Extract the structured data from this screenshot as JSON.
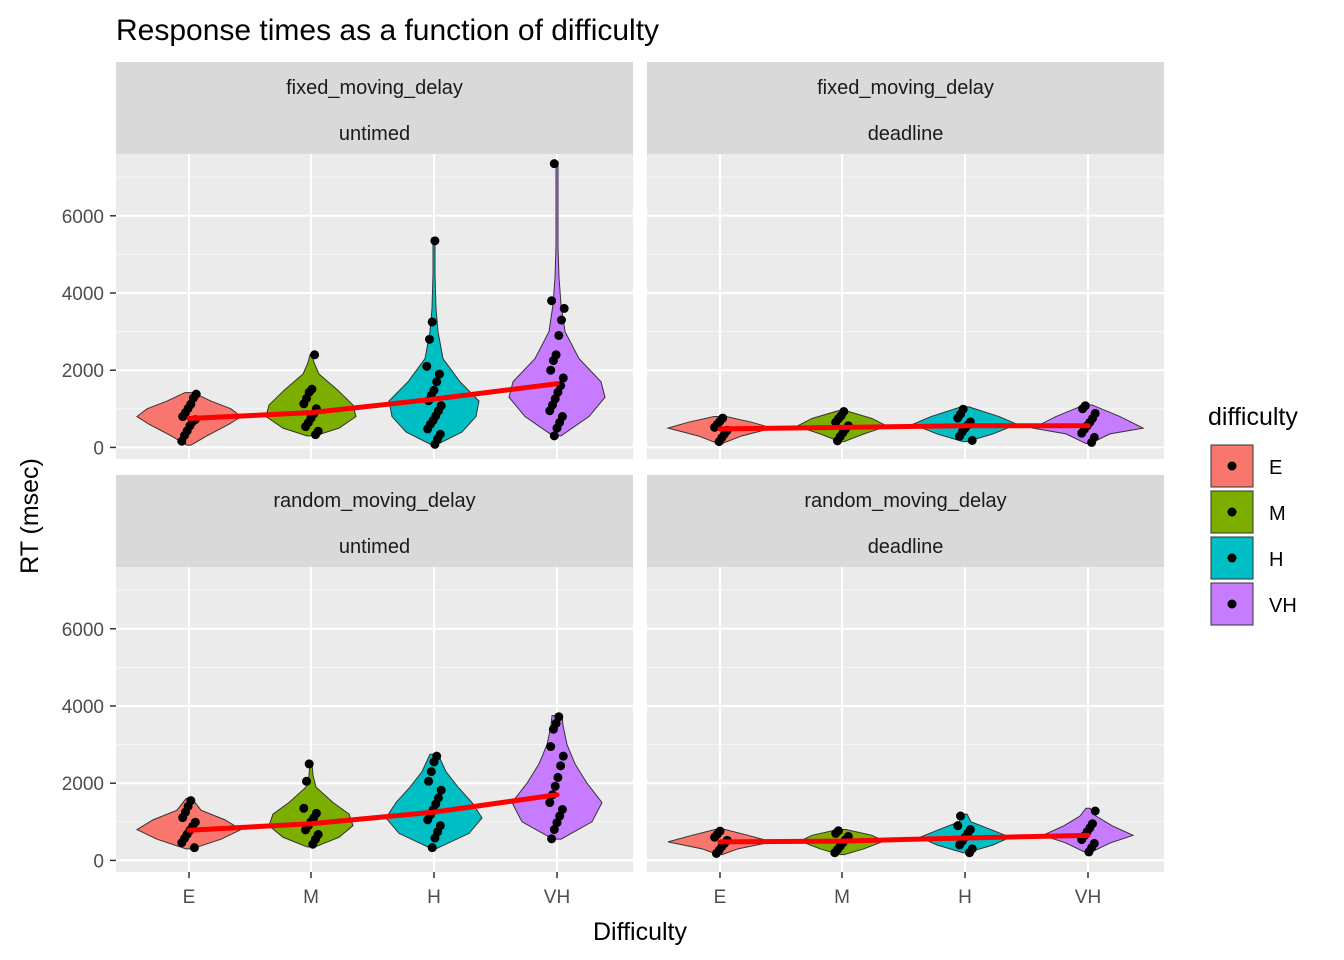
{
  "chart_data": {
    "type": "violin",
    "title": "Response times as a function of difficulty",
    "xlabel": "Difficulty",
    "ylabel": "RT (msec)",
    "categories": [
      "E",
      "M",
      "H",
      "VH"
    ],
    "y_ticks": [
      0,
      2000,
      4000,
      6000
    ],
    "ylim": [
      -300,
      7600
    ],
    "grid": true,
    "legend": {
      "title": "difficulty",
      "position": "right",
      "items": [
        {
          "label": "E",
          "color": "#F8766D"
        },
        {
          "label": "M",
          "color": "#7CAE00"
        },
        {
          "label": "H",
          "color": "#00BFC4"
        },
        {
          "label": "VH",
          "color": "#C77CFF"
        }
      ]
    },
    "trend_color": "#FF0000",
    "panels": [
      {
        "strip_top": "fixed_moving_delay",
        "strip_bottom": "untimed",
        "trend_means": [
          750,
          900,
          1250,
          1650
        ],
        "violins": [
          {
            "min": 60,
            "max": 1420,
            "profile": [
              [
                60,
                2
              ],
              [
                300,
                18
              ],
              [
                600,
                40
              ],
              [
                800,
                52
              ],
              [
                1000,
                42
              ],
              [
                1200,
                22
              ],
              [
                1420,
                4
              ]
            ]
          },
          {
            "min": 300,
            "max": 2400,
            "profile": [
              [
                300,
                4
              ],
              [
                500,
                28
              ],
              [
                800,
                45
              ],
              [
                1100,
                42
              ],
              [
                1500,
                26
              ],
              [
                1900,
                8
              ],
              [
                2200,
                3
              ],
              [
                2400,
                1
              ]
            ]
          },
          {
            "min": 60,
            "max": 5400,
            "profile": [
              [
                60,
                2
              ],
              [
                400,
                28
              ],
              [
                800,
                42
              ],
              [
                1200,
                45
              ],
              [
                1700,
                26
              ],
              [
                2300,
                9
              ],
              [
                3000,
                4
              ],
              [
                3600,
                2
              ],
              [
                4500,
                1
              ],
              [
                5400,
                1
              ]
            ]
          },
          {
            "min": 300,
            "max": 7400,
            "profile": [
              [
                300,
                4
              ],
              [
                800,
                32
              ],
              [
                1300,
                48
              ],
              [
                1700,
                44
              ],
              [
                2300,
                22
              ],
              [
                3000,
                8
              ],
              [
                3700,
                4
              ],
              [
                4400,
                2
              ],
              [
                5200,
                1
              ],
              [
                6500,
                1
              ],
              [
                7400,
                1
              ]
            ]
          }
        ],
        "points": [
          [
            160,
            310,
            430,
            560,
            670,
            720,
            800,
            900,
            1010,
            1120,
            1280,
            1380
          ],
          [
            330,
            420,
            540,
            640,
            760,
            870,
            1000,
            1130,
            1270,
            1430,
            1510,
            2400
          ],
          [
            80,
            220,
            340,
            480,
            600,
            700,
            820,
            950,
            1080,
            1210,
            1350,
            1480,
            1700,
            1900,
            2100,
            2800,
            3250,
            5350
          ],
          [
            300,
            500,
            650,
            800,
            950,
            1100,
            1260,
            1430,
            1600,
            1800,
            2000,
            2250,
            2400,
            2900,
            3300,
            3600,
            3800,
            7350
          ]
        ]
      },
      {
        "strip_top": "fixed_moving_delay",
        "strip_bottom": "deadline",
        "trend_means": [
          480,
          520,
          560,
          560
        ],
        "violins": [
          {
            "min": 100,
            "max": 800,
            "profile": [
              [
                100,
                2
              ],
              [
                300,
                22
              ],
              [
                500,
                52
              ],
              [
                650,
                32
              ],
              [
                800,
                6
              ]
            ]
          },
          {
            "min": 150,
            "max": 950,
            "profile": [
              [
                150,
                2
              ],
              [
                350,
                22
              ],
              [
                550,
                45
              ],
              [
                750,
                30
              ],
              [
                950,
                4
              ]
            ]
          },
          {
            "min": 150,
            "max": 1050,
            "profile": [
              [
                150,
                2
              ],
              [
                350,
                28
              ],
              [
                600,
                52
              ],
              [
                800,
                34
              ],
              [
                1050,
                4
              ]
            ]
          },
          {
            "min": 100,
            "max": 1100,
            "profile": [
              [
                100,
                2
              ],
              [
                350,
                22
              ],
              [
                500,
                55
              ],
              [
                800,
                32
              ],
              [
                1100,
                4
              ]
            ]
          }
        ],
        "points": [
          [
            150,
            250,
            350,
            440,
            520,
            600,
            680,
            760
          ],
          [
            170,
            280,
            380,
            480,
            560,
            650,
            740,
            820,
            930
          ],
          [
            180,
            290,
            400,
            500,
            580,
            660,
            760,
            860,
            990
          ],
          [
            130,
            260,
            370,
            470,
            560,
            650,
            750,
            880,
            1000,
            1080
          ]
        ]
      },
      {
        "strip_top": "random_moving_delay",
        "strip_bottom": "untimed",
        "trend_means": [
          780,
          950,
          1250,
          1700
        ],
        "violins": [
          {
            "min": 300,
            "max": 1600,
            "profile": [
              [
                300,
                3
              ],
              [
                550,
                32
              ],
              [
                800,
                52
              ],
              [
                1050,
                36
              ],
              [
                1300,
                12
              ],
              [
                1600,
                3
              ]
            ]
          },
          {
            "min": 350,
            "max": 2550,
            "profile": [
              [
                350,
                4
              ],
              [
                600,
                28
              ],
              [
                900,
                42
              ],
              [
                1200,
                38
              ],
              [
                1500,
                22
              ],
              [
                1900,
                5
              ],
              [
                2200,
                2
              ],
              [
                2550,
                1
              ]
            ]
          },
          {
            "min": 300,
            "max": 2750,
            "profile": [
              [
                300,
                2
              ],
              [
                700,
                35
              ],
              [
                1100,
                48
              ],
              [
                1500,
                38
              ],
              [
                1900,
                24
              ],
              [
                2300,
                12
              ],
              [
                2750,
                4
              ]
            ]
          },
          {
            "min": 550,
            "max": 3750,
            "profile": [
              [
                550,
                4
              ],
              [
                1000,
                35
              ],
              [
                1500,
                45
              ],
              [
                2000,
                30
              ],
              [
                2500,
                18
              ],
              [
                3000,
                10
              ],
              [
                3500,
                6
              ],
              [
                3750,
                5
              ]
            ]
          }
        ],
        "points": [
          [
            330,
            460,
            570,
            680,
            780,
            880,
            990,
            1110,
            1250,
            1400,
            1550
          ],
          [
            420,
            550,
            670,
            790,
            900,
            1000,
            1100,
            1220,
            1350,
            2050,
            2500
          ],
          [
            330,
            580,
            740,
            900,
            1050,
            1180,
            1310,
            1460,
            1620,
            1820,
            2050,
            2300,
            2550,
            2700
          ],
          [
            560,
            800,
            980,
            1150,
            1320,
            1500,
            1700,
            1920,
            2150,
            2450,
            2700,
            2950,
            3400,
            3550,
            3720
          ]
        ]
      },
      {
        "strip_top": "random_moving_delay",
        "strip_bottom": "deadline",
        "trend_means": [
          480,
          500,
          580,
          650
        ],
        "violins": [
          {
            "min": 150,
            "max": 800,
            "profile": [
              [
                150,
                2
              ],
              [
                300,
                18
              ],
              [
                480,
                52
              ],
              [
                650,
                28
              ],
              [
                800,
                5
              ]
            ]
          },
          {
            "min": 150,
            "max": 800,
            "profile": [
              [
                150,
                2
              ],
              [
                300,
                22
              ],
              [
                500,
                42
              ],
              [
                650,
                30
              ],
              [
                800,
                4
              ]
            ]
          },
          {
            "min": 200,
            "max": 1200,
            "profile": [
              [
                200,
                2
              ],
              [
                400,
                28
              ],
              [
                600,
                45
              ],
              [
                800,
                26
              ],
              [
                1000,
                6
              ],
              [
                1200,
                2
              ]
            ]
          },
          {
            "min": 200,
            "max": 1350,
            "profile": [
              [
                200,
                2
              ],
              [
                450,
                22
              ],
              [
                650,
                45
              ],
              [
                900,
                24
              ],
              [
                1150,
                8
              ],
              [
                1350,
                2
              ]
            ]
          }
        ],
        "points": [
          [
            180,
            260,
            360,
            440,
            520,
            600,
            680,
            760
          ],
          [
            200,
            280,
            370,
            460,
            540,
            620,
            700,
            770
          ],
          [
            200,
            300,
            400,
            500,
            600,
            700,
            800,
            900,
            1150
          ],
          [
            220,
            330,
            440,
            540,
            640,
            740,
            840,
            950,
            1280
          ]
        ]
      }
    ]
  }
}
